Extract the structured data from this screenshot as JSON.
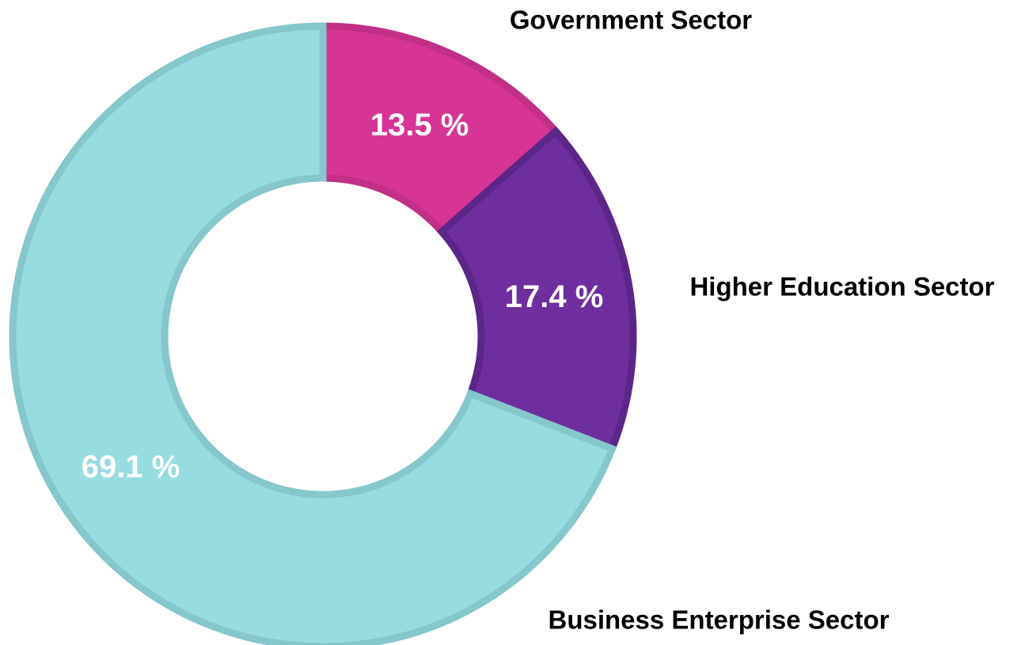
{
  "chart_data": {
    "type": "pie",
    "donut": true,
    "categories": [
      "Government Sector",
      "Higher Education Sector",
      "Business Enterprise Sector"
    ],
    "values": [
      13.5,
      17.4,
      69.1
    ],
    "value_labels": [
      "13.5 %",
      "17.4 %",
      "69.1 %"
    ],
    "colors": [
      "#d63596",
      "#6f2e9e",
      "#97dce0"
    ],
    "border_colors": [
      "#c22f86",
      "#5c2689",
      "#85c7cb"
    ],
    "start": "12 o'clock",
    "direction": "clockwise",
    "legend": "labels beside segments"
  }
}
